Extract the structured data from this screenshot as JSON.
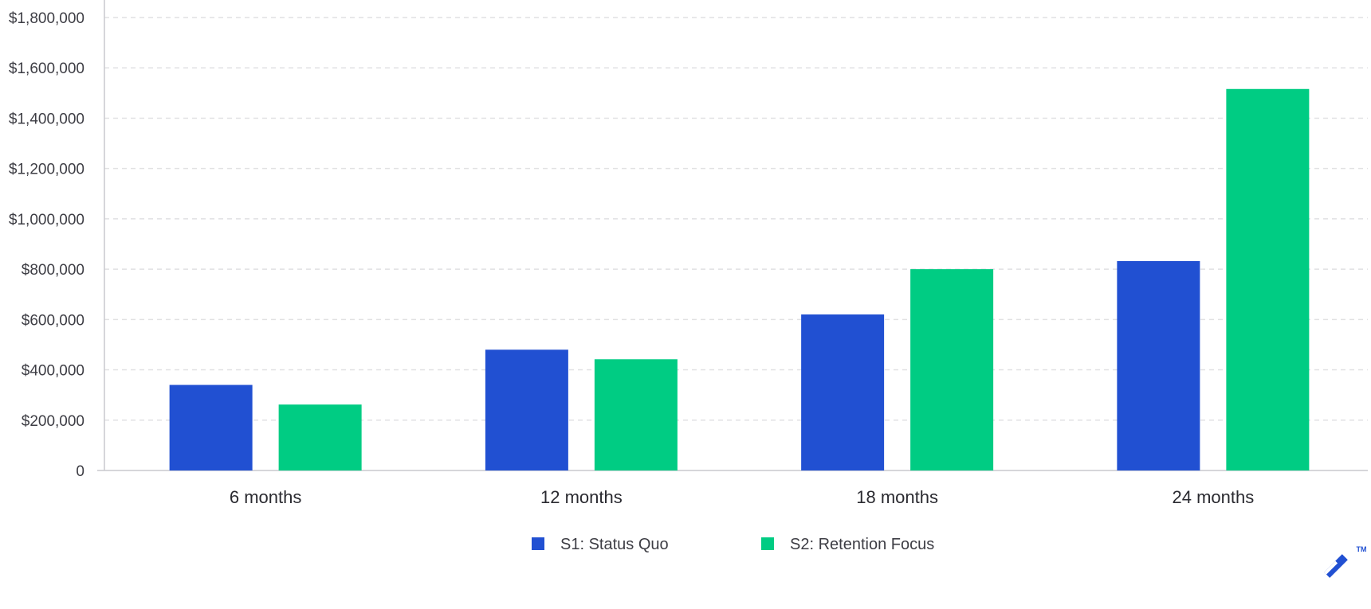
{
  "chart_data": {
    "type": "bar",
    "title": "",
    "xlabel": "",
    "ylabel": "",
    "categories": [
      "6 months",
      "12 months",
      "18 months",
      "24 months"
    ],
    "series": [
      {
        "name": "S1: Status Quo",
        "color": "#2150d2",
        "values": [
          340000,
          480000,
          620000,
          832000
        ]
      },
      {
        "name": "S2: Retention Focus",
        "color": "#00cc83",
        "values": [
          262000,
          442000,
          800000,
          1516000
        ]
      }
    ],
    "ylim": [
      0,
      1800000
    ],
    "yticks": [
      0,
      200000,
      400000,
      600000,
      800000,
      1000000,
      1200000,
      1400000,
      1600000,
      1800000
    ],
    "ytick_labels": [
      "0",
      "$200,000",
      "$400,000",
      "$600,000",
      "$800,000",
      "$1,000,000",
      "$1,200,000",
      "$1,400,000",
      "$1,600,000",
      "$1,800,000"
    ],
    "grid": true,
    "grid_style": "dashed",
    "legend_position": "bottom-center"
  },
  "brand": {
    "logo_icon": "toptal-logo-icon",
    "trademark": "TM",
    "color": "#2150d2"
  }
}
